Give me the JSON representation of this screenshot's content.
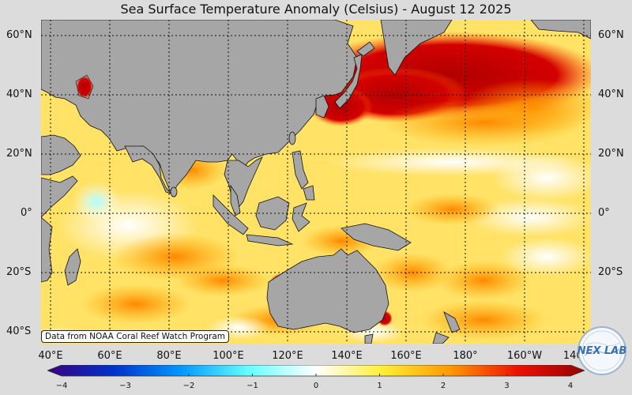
{
  "title": "Sea Surface Temperature Anomaly (Celsius) - August 12 2025",
  "source_note": "Data from NOAA Coral Reef Watch Program",
  "logo_text": "NEX LAB",
  "latitude_labels": [
    "60°N",
    "40°N",
    "20°N",
    "0°",
    "20°S",
    "40°S"
  ],
  "longitude_labels": [
    "40°E",
    "60°E",
    "80°E",
    "100°E",
    "120°E",
    "140°E",
    "160°E",
    "180°",
    "160°W",
    "140°W"
  ],
  "colorbar": {
    "min": -4,
    "max": 4,
    "tick_labels": [
      "−4",
      "−3",
      "−2",
      "−1",
      "0",
      "1",
      "2",
      "3",
      "4"
    ],
    "colors": [
      "#3a0080",
      "#0033cc",
      "#0099ff",
      "#66ffff",
      "#ffffff",
      "#ffee33",
      "#ff9900",
      "#ee1100",
      "#990000"
    ]
  },
  "colors": {
    "land": "#a6a6a6",
    "background": "#dcdcdc",
    "warm_strong": "#b30000",
    "warm": "#ff9900",
    "warm_light": "#ffe266",
    "neutral": "#ffffff"
  }
}
